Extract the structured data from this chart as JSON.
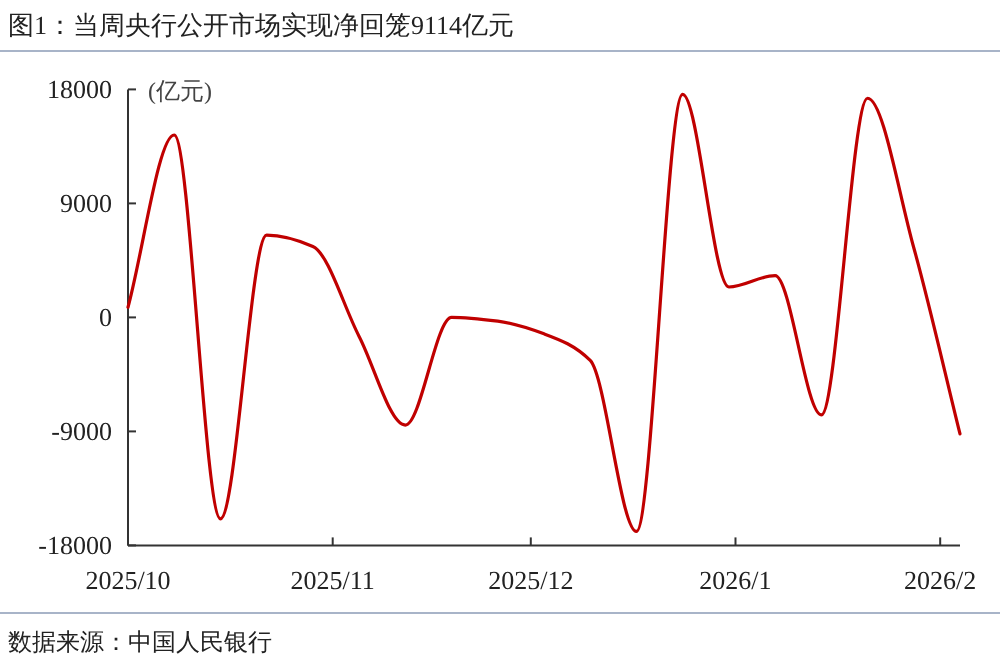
{
  "chart_data": {
    "type": "line",
    "title": "图1：当周央行公开市场实现净回笼9114亿元",
    "ylabel": "(亿元)",
    "annotations": [
      "数据来源：中国人民银行"
    ],
    "x": [
      "2025-10-01",
      "2025-10-08",
      "2025-10-15",
      "2025-10-22",
      "2025-10-29",
      "2025-11-05",
      "2025-11-12",
      "2025-11-19",
      "2025-11-26",
      "2025-12-03",
      "2025-12-10",
      "2025-12-17",
      "2025-12-24",
      "2025-12-31",
      "2026-01-07",
      "2026-01-14",
      "2026-01-21",
      "2026-01-28",
      "2026-02-04"
    ],
    "series": [
      {
        "color": "#c00000",
        "values": [
          800,
          14400,
          -15900,
          6500,
          5600,
          -1500,
          -8500,
          0,
          -300,
          -1300,
          -3400,
          -16900,
          17600,
          2400,
          3300,
          -7700,
          17300,
          5500,
          -9200
        ]
      }
    ],
    "xlim": [
      "2025-10-01",
      "2026-02-04"
    ],
    "ylim": [
      -18000,
      18000
    ],
    "yticks": [
      -18000,
      -9000,
      0,
      9000,
      18000
    ],
    "xticks": [
      {
        "value": "2025-10-01",
        "label": "2025/10"
      },
      {
        "value": "2025-11-01",
        "label": "2025/11"
      },
      {
        "value": "2025-12-01",
        "label": "2025/12"
      },
      {
        "value": "2026-01-01",
        "label": "2026/1"
      },
      {
        "value": "2026-02-01",
        "label": "2026/2"
      }
    ],
    "grid": false,
    "marker": "none",
    "line_style": "solid"
  }
}
